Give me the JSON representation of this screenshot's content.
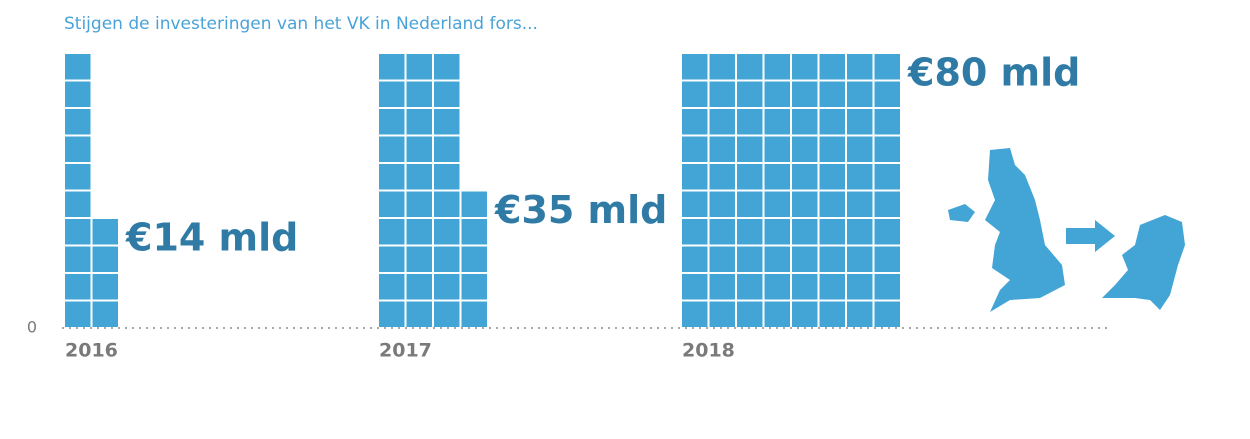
{
  "chart_data": {
    "type": "waffle",
    "title": "Stijgen de investeringen van het VK in Nederland fors...",
    "categories": [
      "2016",
      "2017",
      "2018"
    ],
    "values": [
      14,
      35,
      80
    ],
    "value_labels": [
      "€14 mld",
      "€35 mld",
      "€80 mld"
    ],
    "color": "#42a5d5",
    "yticks": [
      0
    ]
  }
}
